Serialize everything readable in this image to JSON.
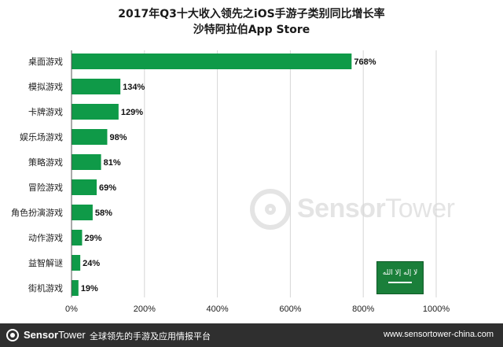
{
  "title": {
    "line1": "2017年Q3十大收入领先之iOS手游子类别同比增长率",
    "line2": "沙特阿拉伯App Store"
  },
  "chart_data": {
    "type": "bar",
    "orientation": "horizontal",
    "title": "2017年Q3十大收入领先之iOS手游子类别同比增长率",
    "subtitle": "沙特阿拉伯App Store",
    "categories": [
      "桌面游戏",
      "模拟游戏",
      "卡牌游戏",
      "娱乐场游戏",
      "策略游戏",
      "冒险游戏",
      "角色扮演游戏",
      "动作游戏",
      "益智解谜",
      "街机游戏"
    ],
    "values": [
      768,
      134,
      129,
      98,
      81,
      69,
      58,
      29,
      24,
      19
    ],
    "value_labels": [
      "768%",
      "134%",
      "129%",
      "98%",
      "81%",
      "69%",
      "58%",
      "29%",
      "24%",
      "19%"
    ],
    "xlim": [
      0,
      1000
    ],
    "ticks": [
      0,
      200,
      400,
      600,
      800,
      1000
    ],
    "tick_labels": [
      "0%",
      "200%",
      "400%",
      "600%",
      "800%",
      "1000%"
    ],
    "grid": true,
    "bar_color": "#0f9a48"
  },
  "watermark": {
    "brand_bold": "Sensor",
    "brand_light": "Tower"
  },
  "flag": {
    "script": "لا إله إلا الله"
  },
  "footer": {
    "brand_bold": "Sensor",
    "brand_light": "Tower",
    "slogan": "全球领先的手游及应用情报平台",
    "url": "www.sensortower-china.com"
  },
  "colors": {
    "bar": "#0f9a48",
    "grid": "#d6d6d6",
    "footer_bg": "#2f2f2f",
    "flag": "#1a7f3a"
  }
}
